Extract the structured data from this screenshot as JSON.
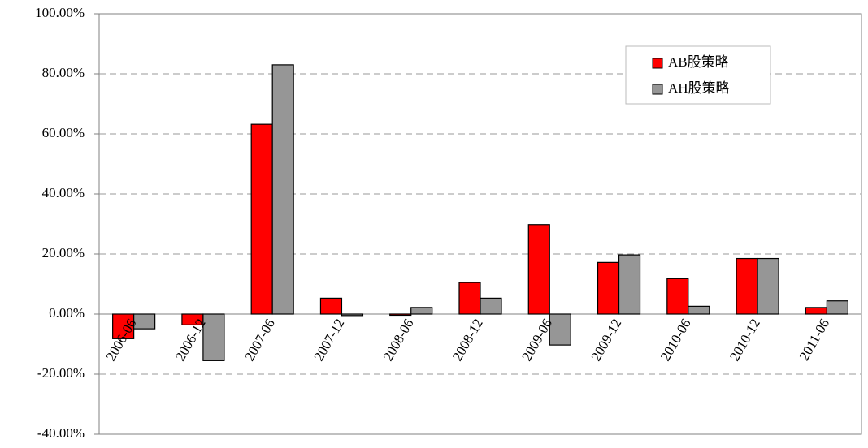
{
  "chart_data": {
    "type": "bar",
    "categories": [
      "2006-06",
      "2006-12",
      "2007-06",
      "2007-12",
      "2008-06",
      "2008-12",
      "2009-06",
      "2009-12",
      "2010-06",
      "2010-12",
      "2011-06"
    ],
    "series": [
      {
        "name": "AB股策略",
        "color": "#ff0000",
        "values": [
          -8.2,
          -3.6,
          63.2,
          5.3,
          -0.4,
          10.5,
          29.8,
          17.2,
          11.8,
          18.5,
          2.2
        ]
      },
      {
        "name": "AH股策略",
        "color": "#969696",
        "values": [
          -4.9,
          -15.5,
          83.0,
          -0.5,
          2.2,
          5.3,
          -10.3,
          19.7,
          2.6,
          18.5,
          4.4
        ]
      }
    ],
    "ylim": [
      -40,
      100
    ],
    "yticks": [
      {
        "value": -40,
        "label": "-40.00%"
      },
      {
        "value": -20,
        "label": "-20.00%"
      },
      {
        "value": 0,
        "label": "0.00%"
      },
      {
        "value": 20,
        "label": "20.00%"
      },
      {
        "value": 40,
        "label": "40.00%"
      },
      {
        "value": 60,
        "label": "60.00%"
      },
      {
        "value": 80,
        "label": "80.00%"
      },
      {
        "value": 100,
        "label": "100.00%"
      }
    ],
    "grid": true,
    "legend": "upper right"
  }
}
